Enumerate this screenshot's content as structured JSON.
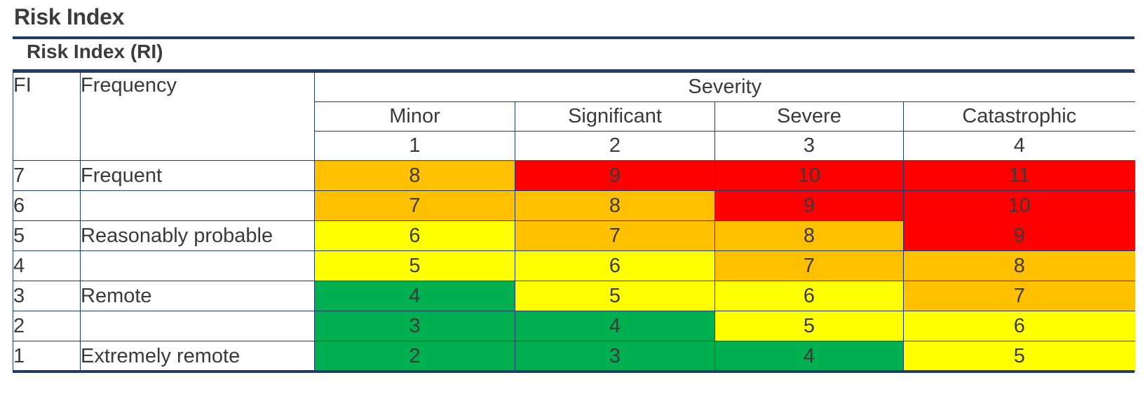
{
  "page_title": "Risk Index",
  "section_title": "Risk Index (RI)",
  "headers": {
    "fi": "FI",
    "frequency": "Frequency",
    "severity": "Severity",
    "severity_levels": [
      "Minor",
      "Significant",
      "Severe",
      "Catastrophic"
    ],
    "severity_numbers": [
      "1",
      "2",
      "3",
      "4"
    ]
  },
  "colors": {
    "red": "#ff0000",
    "orange": "#ffc000",
    "yellow": "#ffff00",
    "green": "#00b050",
    "rule": "#1f3b72"
  },
  "rows": [
    {
      "fi": "7",
      "frequency": "Frequent",
      "cells": [
        {
          "v": "8",
          "c": "orange"
        },
        {
          "v": "9",
          "c": "red"
        },
        {
          "v": "10",
          "c": "red"
        },
        {
          "v": "11",
          "c": "red"
        }
      ]
    },
    {
      "fi": "6",
      "frequency": "",
      "cells": [
        {
          "v": "7",
          "c": "orange"
        },
        {
          "v": "8",
          "c": "orange"
        },
        {
          "v": "9",
          "c": "red"
        },
        {
          "v": "10",
          "c": "red"
        }
      ]
    },
    {
      "fi": "5",
      "frequency": "Reasonably probable",
      "cells": [
        {
          "v": "6",
          "c": "yellow"
        },
        {
          "v": "7",
          "c": "orange"
        },
        {
          "v": "8",
          "c": "orange"
        },
        {
          "v": "9",
          "c": "red"
        }
      ]
    },
    {
      "fi": "4",
      "frequency": "",
      "cells": [
        {
          "v": "5",
          "c": "yellow"
        },
        {
          "v": "6",
          "c": "yellow"
        },
        {
          "v": "7",
          "c": "orange"
        },
        {
          "v": "8",
          "c": "orange"
        }
      ]
    },
    {
      "fi": "3",
      "frequency": "Remote",
      "cells": [
        {
          "v": "4",
          "c": "green"
        },
        {
          "v": "5",
          "c": "yellow"
        },
        {
          "v": "6",
          "c": "yellow"
        },
        {
          "v": "7",
          "c": "orange"
        }
      ]
    },
    {
      "fi": "2",
      "frequency": "",
      "cells": [
        {
          "v": "3",
          "c": "green"
        },
        {
          "v": "4",
          "c": "green"
        },
        {
          "v": "5",
          "c": "yellow"
        },
        {
          "v": "6",
          "c": "yellow"
        }
      ]
    },
    {
      "fi": "1",
      "frequency": "Extremely remote",
      "cells": [
        {
          "v": "2",
          "c": "green"
        },
        {
          "v": "3",
          "c": "green"
        },
        {
          "v": "4",
          "c": "green"
        },
        {
          "v": "5",
          "c": "yellow"
        }
      ]
    }
  ]
}
